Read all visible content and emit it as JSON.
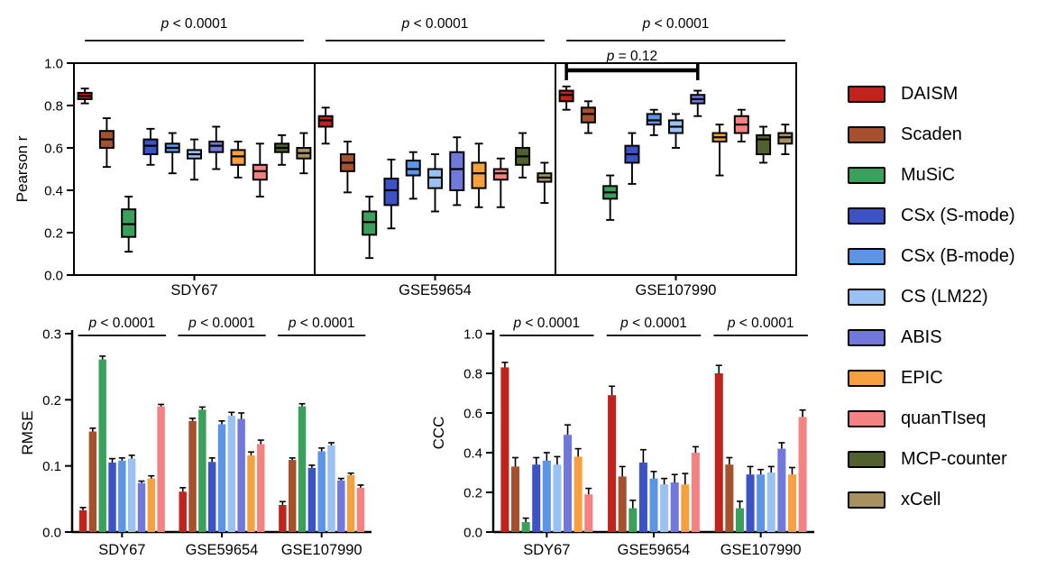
{
  "figure": {
    "background": "#ffffff"
  },
  "methods": [
    {
      "name": "DAISM",
      "color": "#c0231c"
    },
    {
      "name": "Scaden",
      "color": "#a5512d"
    },
    {
      "name": "MuSiC",
      "color": "#3ba05b"
    },
    {
      "name": "CSx (S-mode)",
      "color": "#3d53c5"
    },
    {
      "name": "CSx (B-mode)",
      "color": "#5c94e6"
    },
    {
      "name": "CS (LM22)",
      "color": "#99c1f2"
    },
    {
      "name": "ABIS",
      "color": "#7178db"
    },
    {
      "name": "EPIC",
      "color": "#f6a03f"
    },
    {
      "name": "quanTIseq",
      "color": "#f58282"
    },
    {
      "name": "MCP-counter",
      "color": "#51612d"
    },
    {
      "name": "xCell",
      "color": "#a7915e"
    }
  ],
  "legend": {
    "items_from": "methods"
  },
  "chart_data": [
    {
      "id": "pearson",
      "type": "box",
      "title": "",
      "xlabel": "",
      "ylabel": "Pearson r",
      "ylim": [
        0.0,
        1.0
      ],
      "yticks": [
        0.0,
        0.2,
        0.4,
        0.6,
        0.8,
        1.0
      ],
      "legend_position": "right",
      "grid": false,
      "box_order": [
        "DAISM",
        "Scaden",
        "MuSiC",
        "CSx (S-mode)",
        "CSx (B-mode)",
        "CS (LM22)",
        "ABIS",
        "EPIC",
        "quanTIseq",
        "MCP-counter",
        "xCell"
      ],
      "box_format": [
        "whisker_low",
        "q1",
        "median",
        "q3",
        "whisker_high"
      ],
      "panels": [
        {
          "dataset": "SDY67",
          "p_label": "p < 0.0001",
          "boxes": [
            [
              0.81,
              0.83,
              0.845,
              0.86,
              0.88
            ],
            [
              0.51,
              0.6,
              0.64,
              0.68,
              0.74
            ],
            [
              0.11,
              0.18,
              0.24,
              0.31,
              0.37
            ],
            [
              0.52,
              0.57,
              0.61,
              0.64,
              0.69
            ],
            [
              0.48,
              0.58,
              0.6,
              0.62,
              0.67
            ],
            [
              0.45,
              0.55,
              0.57,
              0.59,
              0.64
            ],
            [
              0.5,
              0.58,
              0.61,
              0.63,
              0.7
            ],
            [
              0.46,
              0.52,
              0.56,
              0.59,
              0.63
            ],
            [
              0.37,
              0.45,
              0.49,
              0.52,
              0.62
            ],
            [
              0.52,
              0.58,
              0.6,
              0.62,
              0.66
            ],
            [
              0.48,
              0.55,
              0.575,
              0.6,
              0.67
            ]
          ]
        },
        {
          "dataset": "GSE59654",
          "p_label": "p < 0.0001",
          "boxes": [
            [
              0.62,
              0.7,
              0.73,
              0.75,
              0.79
            ],
            [
              0.39,
              0.49,
              0.53,
              0.57,
              0.63
            ],
            [
              0.08,
              0.19,
              0.25,
              0.3,
              0.37
            ],
            [
              0.22,
              0.33,
              0.4,
              0.455,
              0.545
            ],
            [
              0.36,
              0.47,
              0.5,
              0.54,
              0.58
            ],
            [
              0.3,
              0.41,
              0.46,
              0.5,
              0.57
            ],
            [
              0.33,
              0.4,
              0.5,
              0.58,
              0.65
            ],
            [
              0.32,
              0.41,
              0.48,
              0.53,
              0.62
            ],
            [
              0.32,
              0.45,
              0.48,
              0.5,
              0.55
            ],
            [
              0.46,
              0.52,
              0.56,
              0.6,
              0.67
            ],
            [
              0.34,
              0.44,
              0.46,
              0.48,
              0.53
            ]
          ]
        },
        {
          "dataset": "GSE107990",
          "p_label": "p < 0.0001",
          "boxes": [
            [
              0.78,
              0.82,
              0.85,
              0.87,
              0.89
            ],
            [
              0.67,
              0.72,
              0.76,
              0.79,
              0.82
            ],
            [
              0.26,
              0.36,
              0.39,
              0.42,
              0.47
            ],
            [
              0.43,
              0.53,
              0.57,
              0.61,
              0.67
            ],
            [
              0.66,
              0.71,
              0.73,
              0.76,
              0.78
            ],
            [
              0.6,
              0.67,
              0.7,
              0.73,
              0.76
            ],
            [
              0.75,
              0.81,
              0.83,
              0.85,
              0.87
            ],
            [
              0.47,
              0.63,
              0.65,
              0.67,
              0.71
            ],
            [
              0.63,
              0.67,
              0.71,
              0.75,
              0.78
            ],
            [
              0.53,
              0.57,
              0.64,
              0.66,
              0.7
            ],
            [
              0.57,
              0.62,
              0.65,
              0.67,
              0.71
            ]
          ]
        }
      ],
      "extra_bracket": {
        "panel_index": 2,
        "from_method": 0,
        "to_method": 6,
        "label": "p = 0.12"
      }
    },
    {
      "id": "rmse",
      "type": "bar",
      "title": "",
      "xlabel": "",
      "ylabel": "RMSE",
      "ylim": [
        0.0,
        0.3
      ],
      "yticks": [
        0.0,
        0.1,
        0.2,
        0.3
      ],
      "grid": false,
      "bar_order": [
        "DAISM",
        "Scaden",
        "MuSiC",
        "CSx (S-mode)",
        "CSx (B-mode)",
        "CS (LM22)",
        "ABIS",
        "EPIC",
        "quanTIseq"
      ],
      "groups": [
        {
          "dataset": "SDY67",
          "p_label": "p < 0.0001",
          "values": [
            0.033,
            0.152,
            0.261,
            0.105,
            0.108,
            0.111,
            0.074,
            0.081,
            0.19
          ],
          "errors": [
            0.004,
            0.005,
            0.005,
            0.006,
            0.004,
            0.005,
            0.003,
            0.004,
            0.003
          ]
        },
        {
          "dataset": "GSE59654",
          "p_label": "p < 0.0001",
          "values": [
            0.061,
            0.168,
            0.185,
            0.106,
            0.163,
            0.176,
            0.171,
            0.116,
            0.133
          ],
          "errors": [
            0.006,
            0.004,
            0.004,
            0.006,
            0.005,
            0.005,
            0.009,
            0.005,
            0.006
          ]
        },
        {
          "dataset": "GSE107990",
          "p_label": "p < 0.0001",
          "values": [
            0.041,
            0.109,
            0.19,
            0.097,
            0.122,
            0.131,
            0.078,
            0.086,
            0.067
          ],
          "errors": [
            0.005,
            0.003,
            0.004,
            0.004,
            0.005,
            0.004,
            0.003,
            0.003,
            0.004
          ]
        }
      ]
    },
    {
      "id": "ccc",
      "type": "bar",
      "title": "",
      "xlabel": "",
      "ylabel": "CCC",
      "ylim": [
        0.0,
        1.0
      ],
      "yticks": [
        0.0,
        0.2,
        0.4,
        0.6,
        0.8,
        1.0
      ],
      "grid": false,
      "bar_order": [
        "DAISM",
        "Scaden",
        "MuSiC",
        "CSx (S-mode)",
        "CSx (B-mode)",
        "CS (LM22)",
        "ABIS",
        "EPIC",
        "quanTIseq"
      ],
      "groups": [
        {
          "dataset": "SDY67",
          "p_label": "p < 0.0001",
          "values": [
            0.83,
            0.33,
            0.05,
            0.34,
            0.36,
            0.34,
            0.49,
            0.38,
            0.19
          ],
          "errors": [
            0.025,
            0.045,
            0.02,
            0.035,
            0.04,
            0.04,
            0.05,
            0.04,
            0.03
          ]
        },
        {
          "dataset": "GSE59654",
          "p_label": "p < 0.0001",
          "values": [
            0.69,
            0.28,
            0.12,
            0.35,
            0.27,
            0.24,
            0.25,
            0.24,
            0.4
          ],
          "errors": [
            0.045,
            0.05,
            0.04,
            0.065,
            0.035,
            0.03,
            0.04,
            0.055,
            0.03
          ]
        },
        {
          "dataset": "GSE107990",
          "p_label": "p < 0.0001",
          "values": [
            0.8,
            0.34,
            0.12,
            0.29,
            0.29,
            0.3,
            0.42,
            0.29,
            0.58
          ],
          "errors": [
            0.04,
            0.035,
            0.035,
            0.04,
            0.025,
            0.03,
            0.03,
            0.035,
            0.035
          ]
        }
      ]
    }
  ]
}
